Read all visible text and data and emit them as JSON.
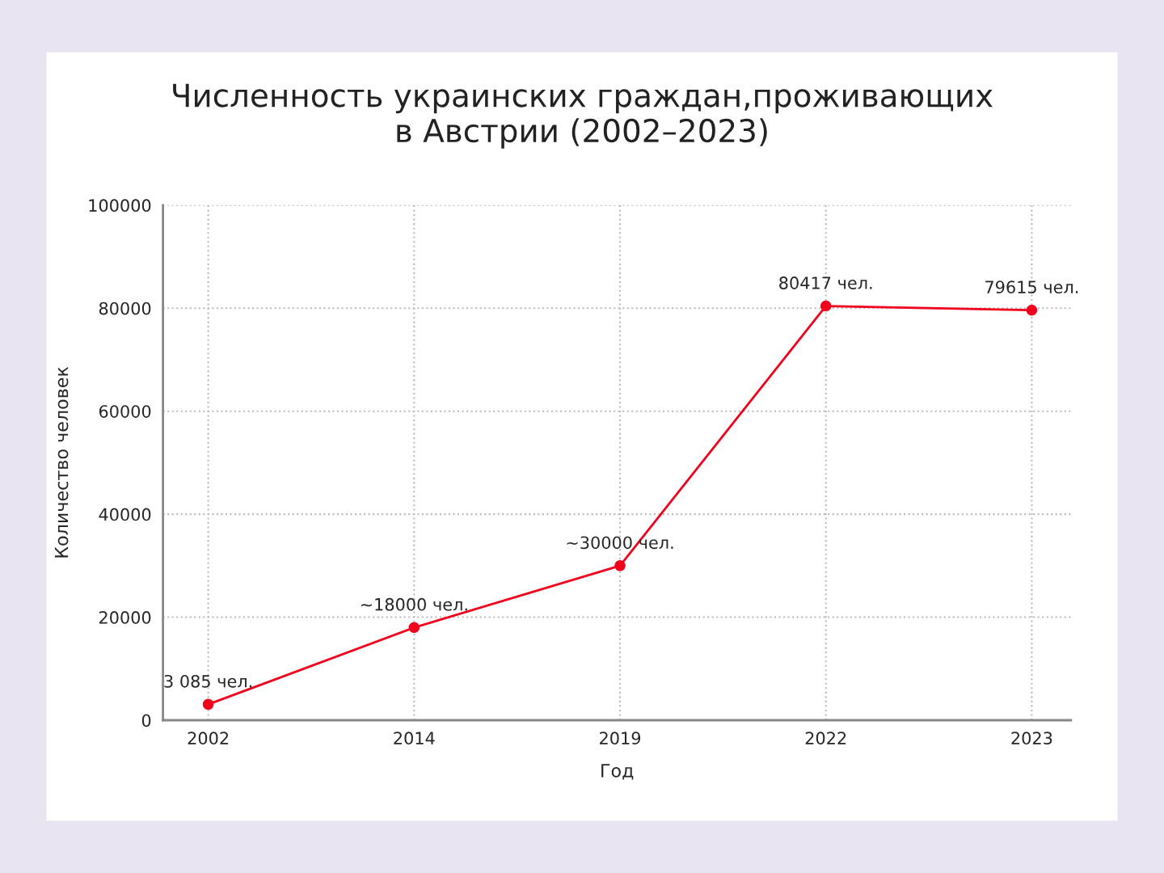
{
  "chart_data": {
    "type": "line",
    "title": "Численность украинских граждан,проживающих\nв Австрии (2002–2023)",
    "xlabel": "Год",
    "ylabel": "Количество человек",
    "categories": [
      "2002",
      "2014",
      "2019",
      "2022",
      "2023"
    ],
    "series": [
      {
        "color": "#f0001c",
        "values": [
          3085,
          18000,
          30000,
          80417,
          79615
        ],
        "value_labels": [
          "3 085 чел.",
          "~18000 чел.",
          "~30000 чел.",
          "80417 чел.",
          "79615 чел."
        ]
      }
    ],
    "ylim": [
      0,
      100000
    ],
    "yticks": [
      0,
      20000,
      40000,
      60000,
      80000,
      100000
    ],
    "grid": true,
    "marker": "circle",
    "line_style": "solid"
  }
}
